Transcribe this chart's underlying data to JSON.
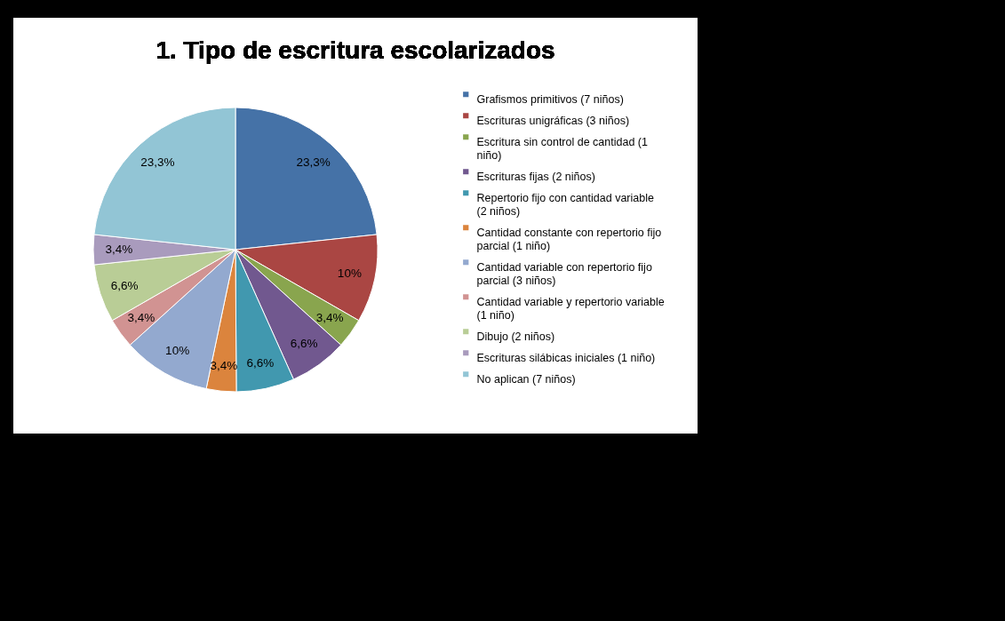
{
  "chart_data": {
    "type": "pie",
    "title": "1. Tipo de escritura escolarizados",
    "categories": [
      "Grafismos primitivos (7 niños)",
      "Escrituras unigráficas (3 niños)",
      "Escritura sin control de cantidad (1 niño)",
      "Escrituras fijas (2 niños)",
      "Repertorio fijo con cantidad variable (2 niños)",
      "Cantidad constante con repertorio fijo parcial (1 niño)",
      "Cantidad variable con repertorio fijo parcial (3 niños)",
      "Cantidad variable y repertorio variable (1 niño)",
      "Dibujo (2 niños)",
      "Escrituras silábicas iniciales (1 niño)",
      "No aplican (7 niños)"
    ],
    "values": [
      23.3,
      10,
      3.4,
      6.6,
      6.6,
      3.4,
      10,
      3.4,
      6.6,
      3.4,
      23.3
    ],
    "value_labels": [
      "23,3%",
      "10%",
      "3,4%",
      "6,6%",
      "6,6%",
      "3,4%",
      "10%",
      "3,4%",
      "6,6%",
      "3,4%",
      "23,3%"
    ],
    "colors": [
      "#4572a7",
      "#aa4643",
      "#89a54e",
      "#71588f",
      "#4198af",
      "#db843d",
      "#93a9cf",
      "#d19392",
      "#b9cd96",
      "#a99bbd",
      "#92c5d5"
    ],
    "legend": "right"
  }
}
